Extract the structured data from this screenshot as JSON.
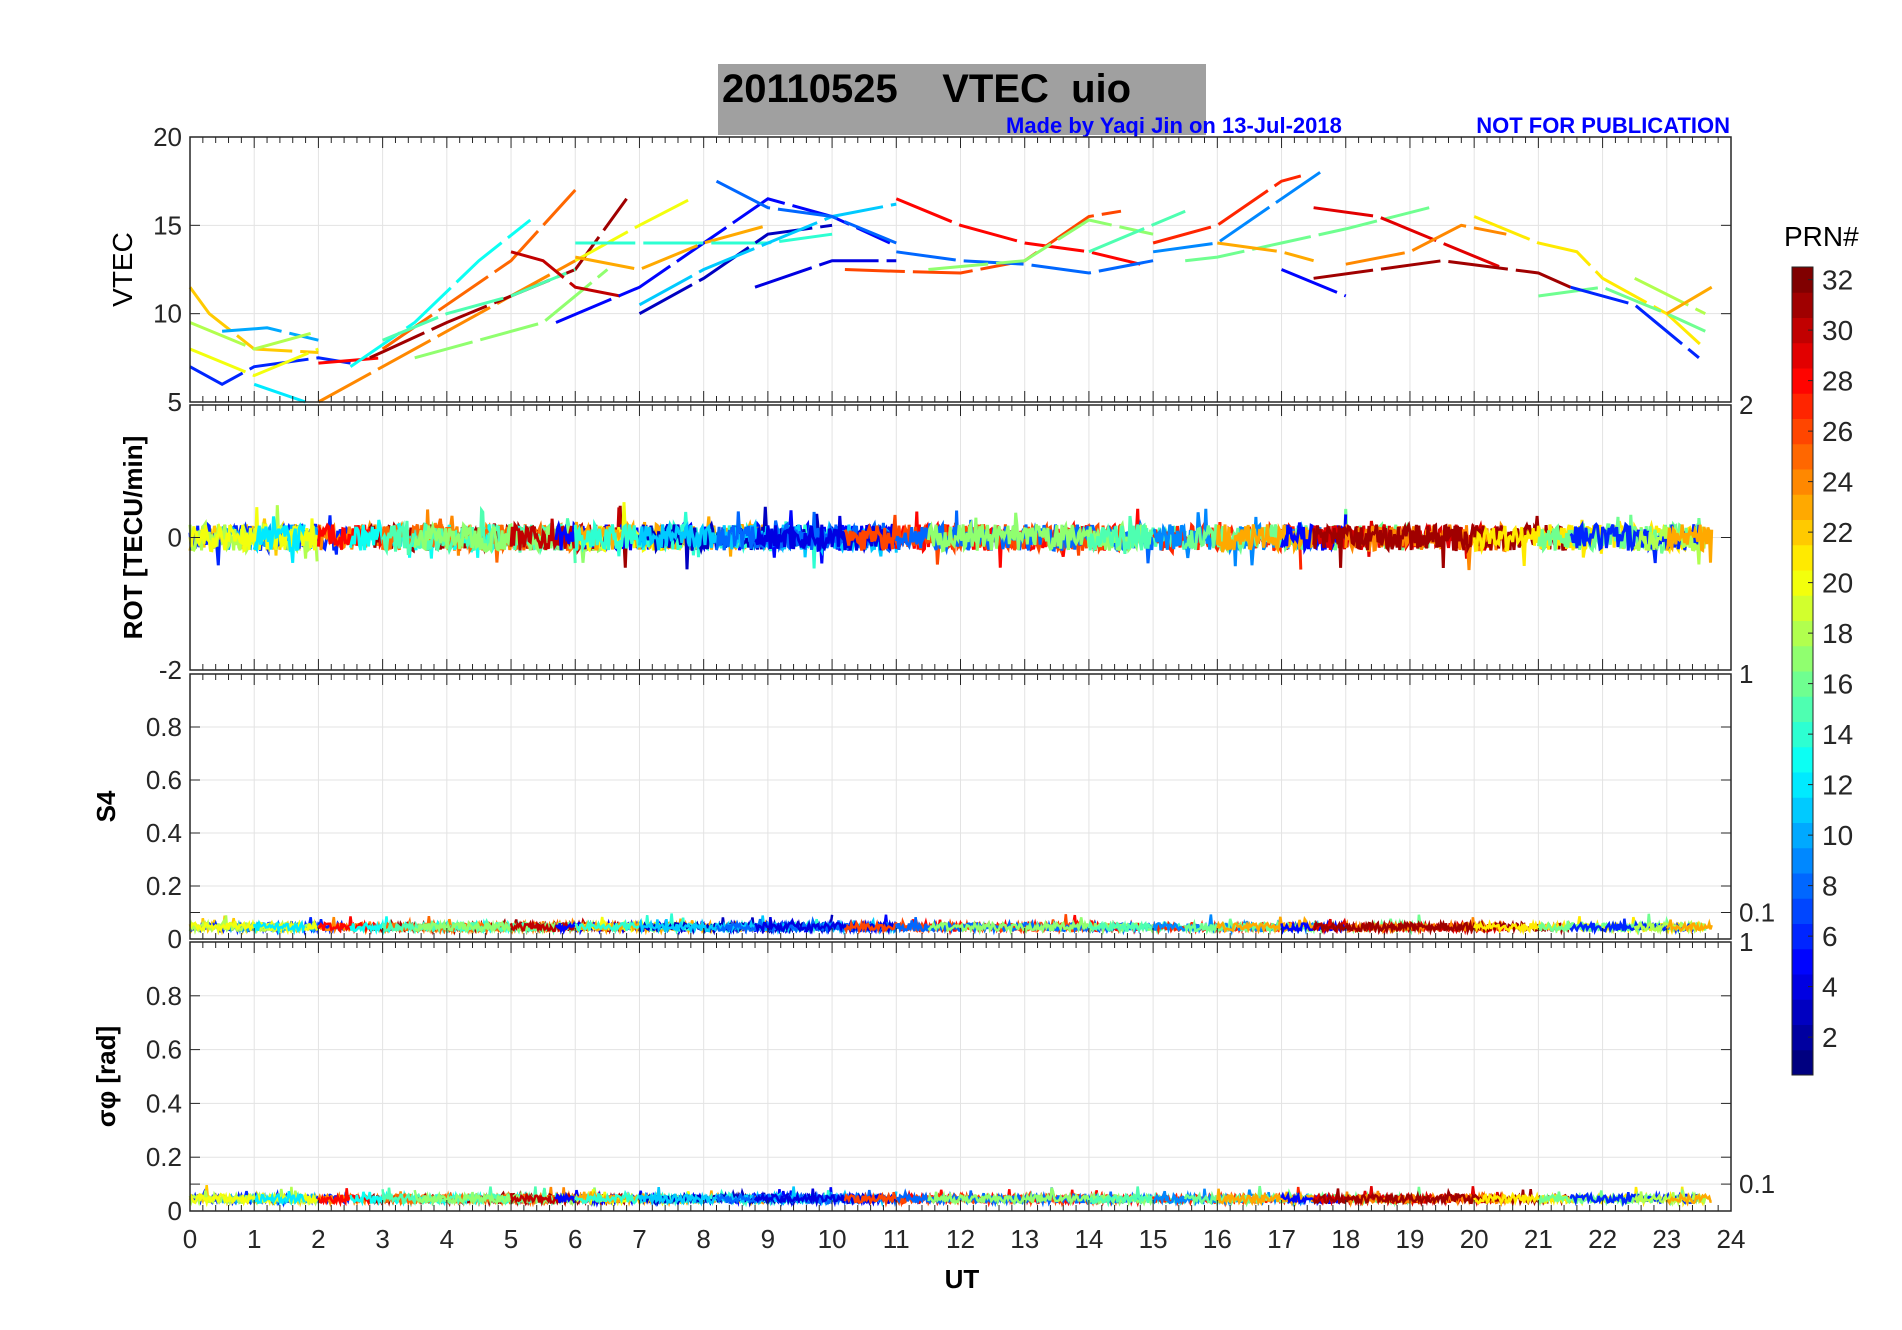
{
  "title": "20110525    VTEC  uio",
  "credit": "Made by Yaqi Jin on 13-Jul-2018",
  "notice": "NOT FOR PUBLICATION",
  "chart_data": {
    "type": "line",
    "xlabel": "UT",
    "xlim": [
      0,
      24
    ],
    "xticks": [
      "0",
      "1",
      "2",
      "3",
      "4",
      "5",
      "6",
      "7",
      "8",
      "9",
      "10",
      "11",
      "12",
      "13",
      "14",
      "15",
      "16",
      "17",
      "18",
      "19",
      "20",
      "21",
      "22",
      "23",
      "24"
    ],
    "colorbar": {
      "label": "PRN#",
      "range": [
        1,
        32
      ],
      "ticks": [
        "2",
        "4",
        "6",
        "8",
        "10",
        "12",
        "14",
        "16",
        "18",
        "20",
        "22",
        "24",
        "26",
        "28",
        "30",
        "32"
      ],
      "colormap": "jet"
    },
    "panels": [
      {
        "ylabel": "VTEC",
        "ylim": [
          5,
          20
        ],
        "yticks": [
          "5",
          "10",
          "15",
          "20"
        ]
      },
      {
        "ylabel": "ROT [TECU/min]",
        "ylim": [
          -2,
          2
        ],
        "yticks": [
          "-2",
          "0",
          "2"
        ],
        "typical_range": [
          -0.3,
          0.3
        ]
      },
      {
        "ylabel": "S4",
        "ylim": [
          0,
          1
        ],
        "yticks": [
          "0",
          "0.1",
          "0.2",
          "0.4",
          "0.6",
          "0.8",
          "1"
        ],
        "typical_level": 0.04
      },
      {
        "ylabel": "σφ [rad]",
        "ylim": [
          0,
          1
        ],
        "yticks": [
          "0",
          "0.1",
          "0.2",
          "0.4",
          "0.6",
          "0.8",
          "1"
        ],
        "typical_level": 0.04
      }
    ],
    "vtec_arcs": [
      {
        "prn": 22,
        "pts": [
          [
            0,
            11.5
          ],
          [
            0.3,
            10
          ],
          [
            1,
            8
          ],
          [
            2,
            7.8
          ]
        ]
      },
      {
        "prn": 6,
        "pts": [
          [
            0,
            7
          ],
          [
            0.5,
            6
          ],
          [
            1,
            7
          ],
          [
            2,
            7.5
          ],
          [
            2.5,
            7.2
          ]
        ]
      },
      {
        "prn": 10,
        "pts": [
          [
            0.5,
            9
          ],
          [
            1.2,
            9.2
          ],
          [
            2,
            8.5
          ]
        ]
      },
      {
        "prn": 18,
        "pts": [
          [
            0,
            9.5
          ],
          [
            1,
            8
          ],
          [
            2,
            9
          ]
        ]
      },
      {
        "prn": 20,
        "pts": [
          [
            0,
            8
          ],
          [
            1,
            6.5
          ],
          [
            2,
            8
          ]
        ]
      },
      {
        "prn": 12,
        "pts": [
          [
            1,
            6
          ],
          [
            1.8,
            5
          ]
        ]
      },
      {
        "prn": 24,
        "pts": [
          [
            2,
            5
          ],
          [
            3,
            7
          ],
          [
            4,
            9
          ],
          [
            5,
            11
          ],
          [
            6,
            13
          ]
        ]
      },
      {
        "prn": 28,
        "pts": [
          [
            2,
            7.2
          ],
          [
            3,
            7.5
          ]
        ]
      },
      {
        "prn": 31,
        "pts": [
          [
            2.8,
            7.5
          ],
          [
            4,
            9.5
          ],
          [
            5,
            11
          ],
          [
            6,
            12.5
          ],
          [
            6.8,
            16.5
          ]
        ]
      },
      {
        "prn": 13,
        "pts": [
          [
            2.5,
            7
          ],
          [
            3.5,
            9.5
          ],
          [
            4.5,
            13
          ],
          [
            5.3,
            15.3
          ]
        ]
      },
      {
        "prn": 25,
        "pts": [
          [
            3,
            8
          ],
          [
            4,
            10.5
          ],
          [
            5,
            13
          ],
          [
            6,
            17
          ]
        ]
      },
      {
        "prn": 15,
        "pts": [
          [
            3,
            8.5
          ],
          [
            4,
            10
          ],
          [
            5,
            11
          ],
          [
            6,
            12.5
          ]
        ]
      },
      {
        "prn": 17,
        "pts": [
          [
            3.5,
            7.5
          ],
          [
            4.5,
            8.5
          ],
          [
            5.5,
            9.5
          ],
          [
            6.5,
            12.5
          ]
        ]
      },
      {
        "prn": 30,
        "pts": [
          [
            5,
            13.5
          ],
          [
            5.5,
            13
          ],
          [
            6,
            11.5
          ],
          [
            6.7,
            11
          ]
        ]
      },
      {
        "prn": 5,
        "pts": [
          [
            5.7,
            9.5
          ],
          [
            7,
            11.5
          ],
          [
            8,
            14
          ],
          [
            9,
            16.5
          ],
          [
            10,
            15.5
          ],
          [
            10.9,
            14
          ]
        ]
      },
      {
        "prn": 20,
        "pts": [
          [
            6,
            13
          ],
          [
            7,
            15
          ],
          [
            7.8,
            16.5
          ]
        ]
      },
      {
        "prn": 23,
        "pts": [
          [
            6,
            13.2
          ],
          [
            7,
            12.5
          ],
          [
            8,
            14
          ],
          [
            9,
            15
          ]
        ]
      },
      {
        "prn": 14,
        "pts": [
          [
            6,
            14
          ],
          [
            7,
            14
          ],
          [
            8,
            14
          ],
          [
            9,
            14
          ],
          [
            10,
            14.5
          ]
        ]
      },
      {
        "prn": 3,
        "pts": [
          [
            7,
            10
          ],
          [
            8,
            12
          ],
          [
            9,
            14.5
          ],
          [
            10,
            15
          ]
        ]
      },
      {
        "prn": 11,
        "pts": [
          [
            7,
            10.5
          ],
          [
            8,
            12.5
          ],
          [
            9,
            14
          ],
          [
            10,
            15.5
          ],
          [
            11,
            16.2
          ]
        ]
      },
      {
        "prn": 8,
        "pts": [
          [
            8.2,
            17.5
          ],
          [
            9,
            16
          ],
          [
            10,
            15.5
          ],
          [
            11,
            14
          ]
        ]
      },
      {
        "prn": 4,
        "pts": [
          [
            8.8,
            11.5
          ],
          [
            10,
            13
          ],
          [
            11,
            13
          ]
        ]
      },
      {
        "prn": 28,
        "pts": [
          [
            11,
            16.5
          ],
          [
            12,
            15
          ],
          [
            13,
            14
          ],
          [
            14,
            13.5
          ],
          [
            14.8,
            12.8
          ]
        ]
      },
      {
        "prn": 26,
        "pts": [
          [
            10.2,
            12.5
          ],
          [
            11,
            12.4
          ],
          [
            12,
            12.3
          ],
          [
            13,
            13
          ],
          [
            14,
            15.5
          ],
          [
            14.5,
            15.8
          ]
        ]
      },
      {
        "prn": 8,
        "pts": [
          [
            11,
            13.5
          ],
          [
            12,
            13
          ],
          [
            13,
            12.8
          ],
          [
            14,
            12.3
          ],
          [
            15,
            13
          ]
        ]
      },
      {
        "prn": 17,
        "pts": [
          [
            11.5,
            12.5
          ],
          [
            13,
            13
          ],
          [
            14,
            15.3
          ],
          [
            15,
            14.5
          ]
        ]
      },
      {
        "prn": 15,
        "pts": [
          [
            14,
            13.5
          ],
          [
            15.5,
            15.8
          ]
        ]
      },
      {
        "prn": 27,
        "pts": [
          [
            15,
            14
          ],
          [
            16,
            15
          ],
          [
            17,
            17.5
          ],
          [
            17.3,
            17.8
          ]
        ]
      },
      {
        "prn": 9,
        "pts": [
          [
            15,
            13.5
          ],
          [
            16,
            14
          ],
          [
            17,
            16.5
          ],
          [
            17.6,
            18
          ]
        ]
      },
      {
        "prn": 16,
        "pts": [
          [
            15.5,
            13
          ],
          [
            16,
            13.2
          ],
          [
            17,
            14
          ],
          [
            18,
            14.8
          ],
          [
            19.3,
            16
          ]
        ]
      },
      {
        "prn": 23,
        "pts": [
          [
            16,
            14
          ],
          [
            17,
            13.5
          ],
          [
            17.5,
            13
          ]
        ]
      },
      {
        "prn": 5,
        "pts": [
          [
            17,
            12.5
          ],
          [
            18,
            11
          ]
        ]
      },
      {
        "prn": 29,
        "pts": [
          [
            17.5,
            16
          ],
          [
            18.5,
            15.5
          ],
          [
            19.5,
            14
          ],
          [
            20.5,
            12.5
          ]
        ]
      },
      {
        "prn": 24,
        "pts": [
          [
            18,
            12.8
          ],
          [
            19,
            13.5
          ],
          [
            19.8,
            15
          ],
          [
            20.5,
            14.5
          ]
        ]
      },
      {
        "prn": 31,
        "pts": [
          [
            17.5,
            12
          ],
          [
            18.5,
            12.5
          ],
          [
            19.5,
            13
          ],
          [
            21,
            12.3
          ],
          [
            21.5,
            11.5
          ]
        ]
      },
      {
        "prn": 21,
        "pts": [
          [
            20,
            15.5
          ],
          [
            21,
            14
          ],
          [
            21.6,
            13.5
          ],
          [
            22,
            12
          ],
          [
            23,
            10
          ],
          [
            23.6,
            8
          ]
        ]
      },
      {
        "prn": 16,
        "pts": [
          [
            21,
            11
          ],
          [
            22,
            11.5
          ],
          [
            23,
            10
          ],
          [
            23.6,
            9
          ]
        ]
      },
      {
        "prn": 6,
        "pts": [
          [
            21.5,
            11.5
          ],
          [
            22.5,
            10.5
          ],
          [
            23.5,
            7.5
          ]
        ]
      },
      {
        "prn": 18,
        "pts": [
          [
            22.5,
            12
          ],
          [
            23.6,
            10
          ]
        ]
      },
      {
        "prn": 23,
        "pts": [
          [
            23,
            10
          ],
          [
            23.7,
            11.5
          ]
        ]
      }
    ]
  }
}
